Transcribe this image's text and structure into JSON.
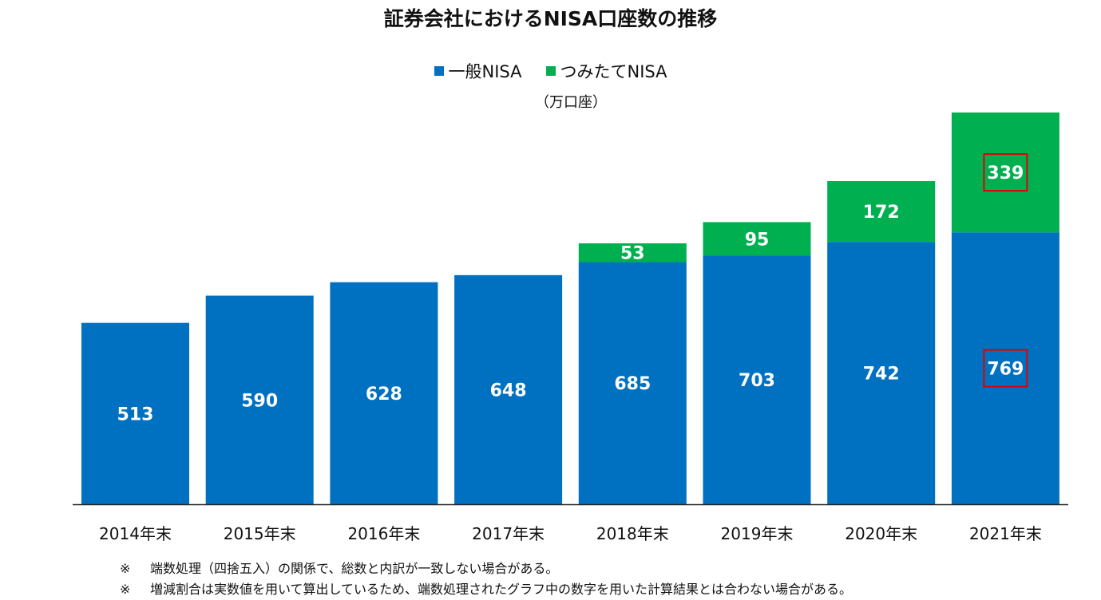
{
  "chart_data": {
    "type": "bar",
    "stacked": true,
    "title": "証券会社におけるNISA口座数の推移",
    "unit_label": "（万口座）",
    "categories": [
      "2014年末",
      "2015年末",
      "2016年末",
      "2017年末",
      "2018年末",
      "2019年末",
      "2020年末",
      "2021年末"
    ],
    "series": [
      {
        "name": "一般NISA",
        "color": "#0070c0",
        "values": [
          513,
          590,
          628,
          648,
          685,
          703,
          742,
          769
        ]
      },
      {
        "name": "つみたてNISA",
        "color": "#00b050",
        "values": [
          null,
          null,
          null,
          null,
          53,
          95,
          172,
          339
        ]
      }
    ],
    "highlighted_labels": [
      {
        "series": 0,
        "category": "2021年末"
      },
      {
        "series": 1,
        "category": "2021年末"
      }
    ],
    "highlight_color": "#e00000",
    "ylim": [
      0,
      1108
    ],
    "legend": "top-center",
    "grid": false
  },
  "notes": [
    {
      "mark": "※",
      "text": "端数処理（四捨五入）の関係で、総数と内訳が一致しない場合がある。"
    },
    {
      "mark": "※",
      "text": "増減割合は実数値を用いて算出しているため、端数処理されたグラフ中の数字を用いた計算結果とは合わない場合がある。"
    }
  ]
}
